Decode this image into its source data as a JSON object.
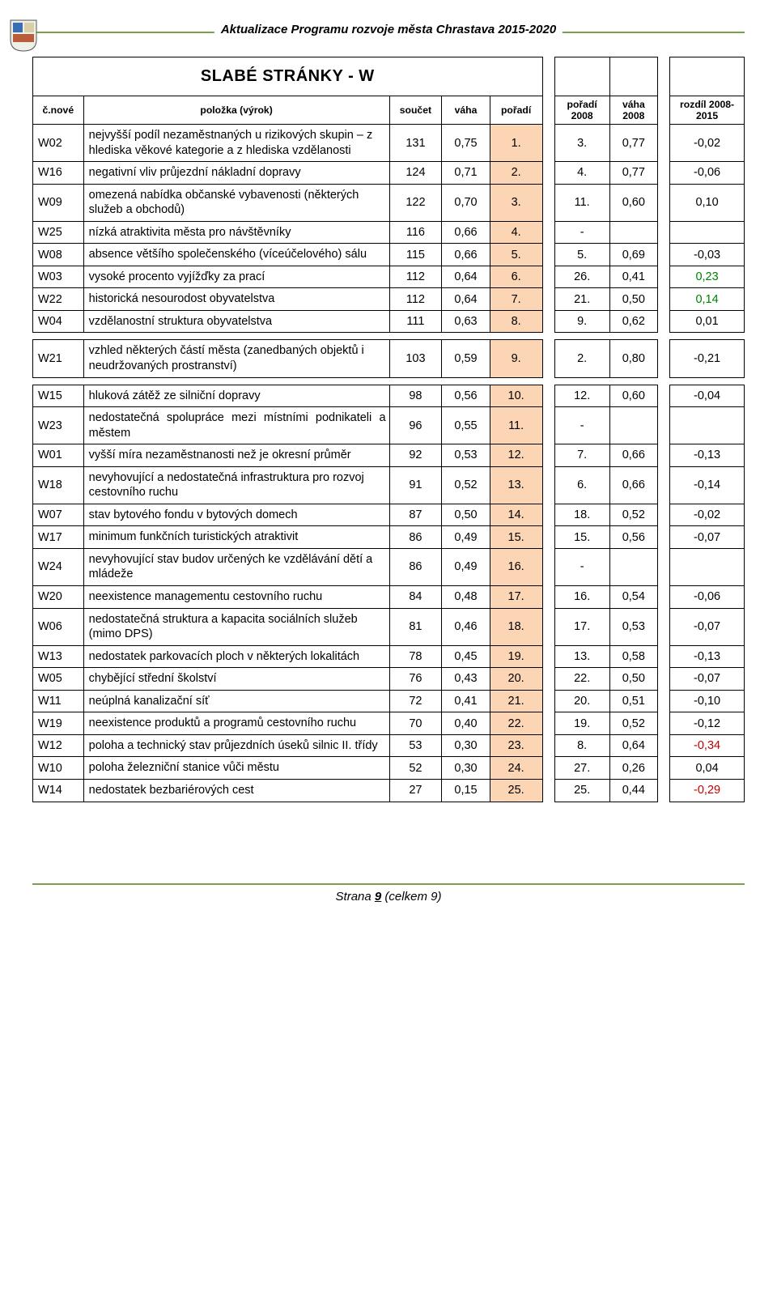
{
  "doc": {
    "header_title": "Aktualizace Programu rozvoje města Chrastava 2015-2020",
    "footer_prefix": "Strana ",
    "footer_page": "9",
    "footer_suffix": " (celkem 9)"
  },
  "table": {
    "title": "SLABÉ STRÁNKY - W",
    "columns": {
      "c0": "č.nové",
      "c1": "položka (výrok)",
      "c2": "součet",
      "c3": "váha",
      "c4": "pořadí",
      "c5": "pořadí 2008",
      "c6": "váha 2008",
      "c7": "rozdíl 2008-2015"
    },
    "rows": [
      {
        "code": "W02",
        "label": "nejvyšší podíl nezaměstnaných u rizikových skupin – z hlediska věkové kategorie a z hlediska vzdělanosti",
        "soucet": "131",
        "vaha": "0,75",
        "poradi": "1.",
        "p2008": "3.",
        "v2008": "0,77",
        "rozdil": "-0,02",
        "rcolor": "#000"
      },
      {
        "code": "W16",
        "label": "negativní vliv průjezdní nákladní dopravy",
        "soucet": "124",
        "vaha": "0,71",
        "poradi": "2.",
        "p2008": "4.",
        "v2008": "0,77",
        "rozdil": "-0,06",
        "rcolor": "#000"
      },
      {
        "code": "W09",
        "label": "omezená nabídka občanské vybavenosti (některých služeb a obchodů)",
        "soucet": "122",
        "vaha": "0,70",
        "poradi": "3.",
        "p2008": "11.",
        "v2008": "0,60",
        "rozdil": "0,10",
        "rcolor": "#000"
      },
      {
        "code": "W25",
        "label": "nízká atraktivita města pro návštěvníky",
        "soucet": "116",
        "vaha": "0,66",
        "poradi": "4.",
        "p2008": "-",
        "v2008": "",
        "rozdil": "",
        "rcolor": "#000"
      },
      {
        "code": "W08",
        "label": "absence většího společenského (víceúčelového) sálu",
        "soucet": "115",
        "vaha": "0,66",
        "poradi": "5.",
        "p2008": "5.",
        "v2008": "0,69",
        "rozdil": "-0,03",
        "rcolor": "#000"
      },
      {
        "code": "W03",
        "label": "vysoké procento vyjížďky za prací",
        "soucet": "112",
        "vaha": "0,64",
        "poradi": "6.",
        "p2008": "26.",
        "v2008": "0,41",
        "rozdil": "0,23",
        "rcolor": "#008000"
      },
      {
        "code": "W22",
        "label": "historická nesourodost obyvatelstva",
        "soucet": "112",
        "vaha": "0,64",
        "poradi": "7.",
        "p2008": "21.",
        "v2008": "0,50",
        "rozdil": "0,14",
        "rcolor": "#008000"
      },
      {
        "code": "W04",
        "label": "vzdělanostní struktura obyvatelstva",
        "soucet": "111",
        "vaha": "0,63",
        "poradi": "8.",
        "p2008": "9.",
        "v2008": "0,62",
        "rozdil": "0,01",
        "rcolor": "#000"
      },
      {
        "gap": true
      },
      {
        "code": "W21",
        "label": "vzhled některých částí města (zanedbaných objektů i neudržovaných prostranství)",
        "soucet": "103",
        "vaha": "0,59",
        "poradi": "9.",
        "p2008": "2.",
        "v2008": "0,80",
        "rozdil": "-0,21",
        "rcolor": "#000"
      },
      {
        "gap": true
      },
      {
        "code": "W15",
        "label": "hluková zátěž ze silniční dopravy",
        "soucet": "98",
        "vaha": "0,56",
        "poradi": "10.",
        "p2008": "12.",
        "v2008": "0,60",
        "rozdil": "-0,04",
        "rcolor": "#000"
      },
      {
        "code": "W23",
        "label": "nedostatečná spolupráce mezi místními podnikateli a městem",
        "soucet": "96",
        "vaha": "0,55",
        "poradi": "11.",
        "p2008": "-",
        "v2008": "",
        "rozdil": "",
        "rcolor": "#000",
        "justify": true
      },
      {
        "code": "W01",
        "label": "vyšší míra nezaměstnanosti než je okresní průměr",
        "soucet": "92",
        "vaha": "0,53",
        "poradi": "12.",
        "p2008": "7.",
        "v2008": "0,66",
        "rozdil": "-0,13",
        "rcolor": "#000"
      },
      {
        "code": "W18",
        "label": "nevyhovující a nedostatečná infrastruktura pro rozvoj cestovního ruchu",
        "soucet": "91",
        "vaha": "0,52",
        "poradi": "13.",
        "p2008": "6.",
        "v2008": "0,66",
        "rozdil": "-0,14",
        "rcolor": "#000"
      },
      {
        "code": "W07",
        "label": "stav bytového fondu v bytových domech",
        "soucet": "87",
        "vaha": "0,50",
        "poradi": "14.",
        "p2008": "18.",
        "v2008": "0,52",
        "rozdil": "-0,02",
        "rcolor": "#000"
      },
      {
        "code": "W17",
        "label": "minimum funkčních turistických atraktivit",
        "soucet": "86",
        "vaha": "0,49",
        "poradi": "15.",
        "p2008": "15.",
        "v2008": "0,56",
        "rozdil": "-0,07",
        "rcolor": "#000"
      },
      {
        "code": "W24",
        "label": "nevyhovující stav budov určených ke vzdělávání dětí a mládeže",
        "soucet": "86",
        "vaha": "0,49",
        "poradi": "16.",
        "p2008": "-",
        "v2008": "",
        "rozdil": "",
        "rcolor": "#000"
      },
      {
        "code": "W20",
        "label": "neexistence managementu cestovního ruchu",
        "soucet": "84",
        "vaha": "0,48",
        "poradi": "17.",
        "p2008": "16.",
        "v2008": "0,54",
        "rozdil": "-0,06",
        "rcolor": "#000"
      },
      {
        "code": "W06",
        "label": "nedostatečná struktura a kapacita sociálních služeb (mimo DPS)",
        "soucet": "81",
        "vaha": "0,46",
        "poradi": "18.",
        "p2008": "17.",
        "v2008": "0,53",
        "rozdil": "-0,07",
        "rcolor": "#000"
      },
      {
        "code": "W13",
        "label": "nedostatek parkovacích ploch v některých lokalitách",
        "soucet": "78",
        "vaha": "0,45",
        "poradi": "19.",
        "p2008": "13.",
        "v2008": "0,58",
        "rozdil": "-0,13",
        "rcolor": "#000"
      },
      {
        "code": "W05",
        "label": "chybějící střední školství",
        "soucet": "76",
        "vaha": "0,43",
        "poradi": "20.",
        "p2008": "22.",
        "v2008": "0,50",
        "rozdil": "-0,07",
        "rcolor": "#000"
      },
      {
        "code": "W11",
        "label": "neúplná kanalizační síť",
        "soucet": "72",
        "vaha": "0,41",
        "poradi": "21.",
        "p2008": "20.",
        "v2008": "0,51",
        "rozdil": "-0,10",
        "rcolor": "#000"
      },
      {
        "code": "W19",
        "label": "neexistence produktů a programů cestovního ruchu",
        "soucet": "70",
        "vaha": "0,40",
        "poradi": "22.",
        "p2008": "19.",
        "v2008": "0,52",
        "rozdil": "-0,12",
        "rcolor": "#000"
      },
      {
        "code": "W12",
        "label": "poloha a technický stav průjezdních úseků silnic II. třídy",
        "soucet": "53",
        "vaha": "0,30",
        "poradi": "23.",
        "p2008": "8.",
        "v2008": "0,64",
        "rozdil": "-0,34",
        "rcolor": "#c00000"
      },
      {
        "code": "W10",
        "label": "poloha železniční stanice vůči městu",
        "soucet": "52",
        "vaha": "0,30",
        "poradi": "24.",
        "p2008": "27.",
        "v2008": "0,26",
        "rozdil": "0,04",
        "rcolor": "#000"
      },
      {
        "code": "W14",
        "label": "nedostatek bezbariérových cest",
        "soucet": "27",
        "vaha": "0,15",
        "poradi": "25.",
        "p2008": "25.",
        "v2008": "0,44",
        "rozdil": "-0,29",
        "rcolor": "#c00000"
      }
    ],
    "colors": {
      "highlight": "#fcd5b4",
      "rule": "#7aa04a"
    }
  }
}
